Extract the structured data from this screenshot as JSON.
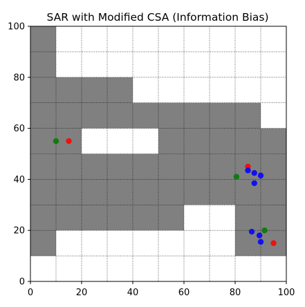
{
  "chart_data": {
    "type": "scatter",
    "title": "SAR with Modified CSA (Information Bias)",
    "xlabel": "",
    "ylabel": "",
    "xlim": [
      0,
      100
    ],
    "ylim": [
      0,
      100
    ],
    "xticks": [
      0,
      20,
      40,
      60,
      80,
      100
    ],
    "yticks": [
      0,
      20,
      40,
      60,
      80,
      100
    ],
    "grid": true,
    "grid_step": 10,
    "colors": {
      "obstacle": "#808080",
      "free": "#ffffff",
      "red": "#ee1111",
      "green": "#117a11",
      "blue": "#1111ee"
    },
    "obstacles": [
      {
        "x": 0,
        "y": 10,
        "w": 10,
        "h": 90
      },
      {
        "x": 10,
        "y": 20,
        "w": 30,
        "h": 60
      },
      {
        "x": 40,
        "y": 20,
        "w": 50,
        "h": 50
      },
      {
        "x": 90,
        "y": 10,
        "w": 10,
        "h": 50
      },
      {
        "x": 60,
        "y": 10,
        "w": 30,
        "h": 20
      },
      {
        "x": 80,
        "y": 30,
        "w": 10,
        "h": 30
      }
    ],
    "free_cutouts": [
      {
        "x": 20,
        "y": 50,
        "w": 30,
        "h": 10
      },
      {
        "x": 60,
        "y": 10,
        "w": 20,
        "h": 20
      }
    ],
    "series": [
      {
        "color_key": "red",
        "points": [
          [
            15,
            55
          ],
          [
            85,
            45
          ],
          [
            95,
            15
          ]
        ]
      },
      {
        "color_key": "green",
        "points": [
          [
            10,
            55
          ],
          [
            80.5,
            41
          ],
          [
            91.5,
            20
          ]
        ]
      },
      {
        "color_key": "blue",
        "points": [
          [
            85,
            43.5
          ],
          [
            87.5,
            42.5
          ],
          [
            90,
            41.5
          ],
          [
            87.5,
            38.5
          ],
          [
            86.5,
            19.5
          ],
          [
            89.5,
            18
          ],
          [
            90,
            15.5
          ]
        ]
      }
    ]
  }
}
